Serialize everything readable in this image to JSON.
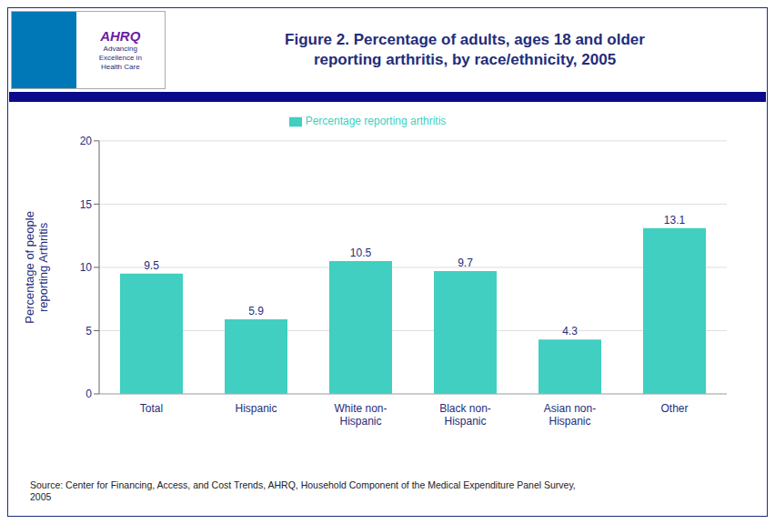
{
  "chart_data": {
    "type": "bar",
    "title": "Figure 2. Percentage of adults, ages 18 and older\nreporting arthritis, by race/ethnicity, 2005",
    "categories": [
      "Total",
      "Hispanic",
      "White non-\nHispanic",
      "Black non-\nHispanic",
      "Asian non-\nHispanic",
      "Other"
    ],
    "series": [
      {
        "name": "Percentage reporting arthritis",
        "color": "#40cfc0",
        "values": [
          9.5,
          5.9,
          10.5,
          9.7,
          4.3,
          13.1
        ]
      }
    ],
    "y_label": "Percentage of people\nreporting Arthritis",
    "ylim": [
      0,
      20
    ],
    "yticks": [
      0,
      5,
      10,
      15,
      20
    ],
    "grid": true,
    "data_labels": true,
    "source": "Source:  Center for Financing, Access, and Cost Trends, AHRQ, Household Component of the Medical Expenditure Panel Survey,\n2005",
    "annotations": [
      "AHRQ",
      "Advancing\nExcellence in\nHealth Care"
    ]
  }
}
